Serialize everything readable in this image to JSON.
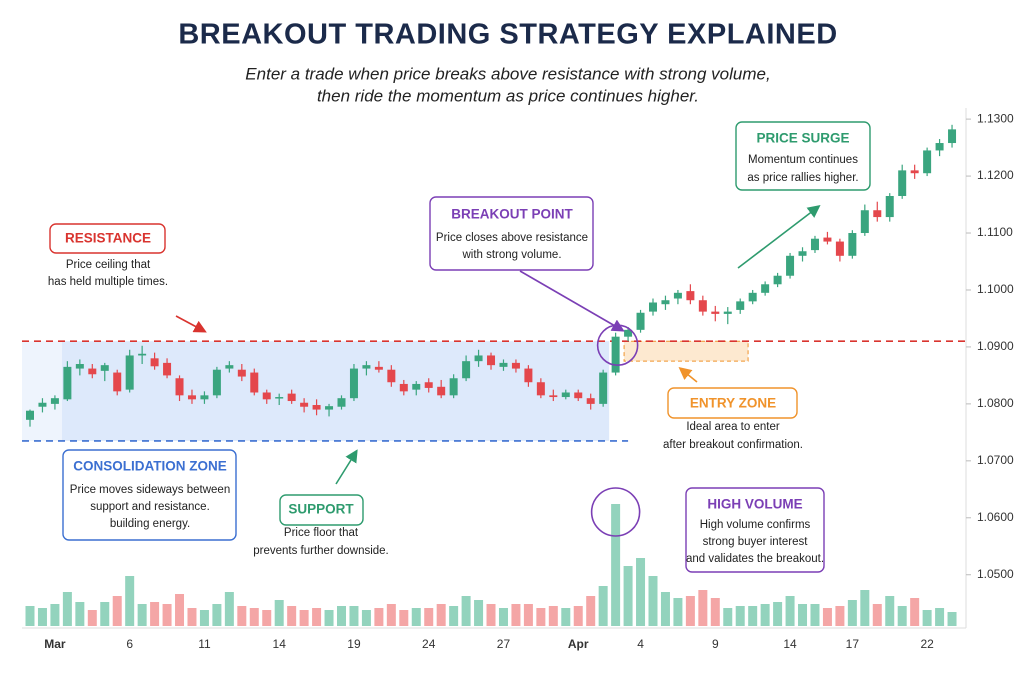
{
  "chart_data": {
    "type": "candlestick",
    "title": "BREAKOUT TRADING STRATEGY EXPLAINED",
    "subtitle": [
      "Enter a trade when price breaks above resistance with strong volume,",
      "then ride the momentum as price continues higher."
    ],
    "categories": [
      null,
      null,
      "Mar",
      null,
      null,
      null,
      null,
      null,
      "6",
      null,
      null,
      null,
      null,
      null,
      "11",
      null,
      null,
      null,
      null,
      null,
      "14",
      null,
      null,
      null,
      null,
      null,
      "19",
      null,
      null,
      null,
      null,
      null,
      "24",
      null,
      null,
      null,
      null,
      null,
      "27",
      null,
      null,
      null,
      null,
      null,
      "Apr",
      null,
      null,
      null,
      null,
      "4",
      null,
      null,
      null,
      null,
      null,
      "9",
      null,
      null,
      null,
      null,
      null,
      "14",
      null,
      null,
      null,
      null,
      "17",
      null,
      null,
      null,
      null,
      null,
      "22",
      null,
      null
    ],
    "open": [
      1.0772,
      1.0795,
      1.08,
      1.0808,
      1.0862,
      1.0862,
      1.0858,
      1.0855,
      1.0825,
      1.0885,
      1.088,
      1.0872,
      1.0845,
      1.0815,
      1.0808,
      1.0815,
      1.0862,
      1.086,
      1.0855,
      1.082,
      1.081,
      1.0818,
      1.0802,
      1.0798,
      1.079,
      1.0795,
      1.081,
      1.0862,
      1.0865,
      1.086,
      1.0835,
      1.0825,
      1.0838,
      1.083,
      1.0815,
      1.0845,
      1.0875,
      1.0885,
      1.0865,
      1.0872,
      1.0862,
      1.0838,
      1.0815,
      1.0812,
      1.082,
      1.081,
      1.08,
      1.0855,
      1.0918,
      1.093,
      1.0962,
      1.0975,
      1.0985,
      1.0998,
      1.0982,
      1.0962,
      1.0958,
      1.0965,
      1.098,
      1.0995,
      1.101,
      1.1025,
      1.106,
      1.107,
      1.1092,
      1.1085,
      1.106,
      1.11,
      1.114,
      1.1128,
      1.1165,
      1.121,
      1.1205,
      1.1245,
      1.1258
    ],
    "high": [
      1.079,
      1.081,
      1.0815,
      1.0875,
      1.0878,
      1.087,
      1.0872,
      1.086,
      1.0895,
      1.0902,
      1.089,
      1.088,
      1.085,
      1.0825,
      1.0822,
      1.0865,
      1.0875,
      1.087,
      1.0862,
      1.0825,
      1.0818,
      1.0825,
      1.081,
      1.0808,
      1.08,
      1.0815,
      1.087,
      1.0875,
      1.0875,
      1.0868,
      1.0842,
      1.084,
      1.0845,
      1.0842,
      1.0852,
      1.0885,
      1.0895,
      1.089,
      1.0878,
      1.0878,
      1.0868,
      1.0845,
      1.0825,
      1.0825,
      1.0825,
      1.0818,
      1.086,
      1.0925,
      1.0935,
      1.0965,
      1.0985,
      1.099,
      1.1,
      1.101,
      1.099,
      1.0972,
      1.097,
      1.0985,
      1.1,
      1.1015,
      1.103,
      1.1065,
      1.1075,
      1.1095,
      1.1102,
      1.109,
      1.1105,
      1.115,
      1.1155,
      1.117,
      1.122,
      1.122,
      1.125,
      1.1265,
      1.129
    ],
    "low": [
      1.076,
      1.0785,
      1.079,
      1.0805,
      1.085,
      1.0845,
      1.084,
      1.0815,
      1.082,
      1.087,
      1.086,
      1.0845,
      1.0805,
      1.08,
      1.08,
      1.081,
      1.0855,
      1.084,
      1.0815,
      1.08,
      1.0798,
      1.08,
      1.0785,
      1.078,
      1.0778,
      1.079,
      1.0805,
      1.085,
      1.0855,
      1.083,
      1.0815,
      1.0815,
      1.082,
      1.081,
      1.081,
      1.084,
      1.0865,
      1.086,
      1.0858,
      1.0855,
      1.083,
      1.081,
      1.0805,
      1.0808,
      1.0805,
      1.079,
      1.0795,
      1.085,
      1.091,
      1.0925,
      1.0955,
      1.0965,
      1.0975,
      1.0975,
      1.0955,
      1.0945,
      1.094,
      1.0958,
      1.0975,
      1.099,
      1.1005,
      1.102,
      1.105,
      1.1065,
      1.108,
      1.105,
      1.1055,
      1.1095,
      1.112,
      1.112,
      1.116,
      1.1195,
      1.12,
      1.1235,
      1.125
    ],
    "close": [
      1.0788,
      1.0802,
      1.081,
      1.0865,
      1.087,
      1.0852,
      1.0868,
      1.0822,
      1.0885,
      1.0888,
      1.0866,
      1.085,
      1.0815,
      1.0808,
      1.0815,
      1.086,
      1.0868,
      1.0848,
      1.082,
      1.0808,
      1.0812,
      1.0805,
      1.0795,
      1.079,
      1.0796,
      1.081,
      1.0862,
      1.0868,
      1.086,
      1.0838,
      1.0822,
      1.0835,
      1.0828,
      1.0815,
      1.0845,
      1.0875,
      1.0885,
      1.0868,
      1.0872,
      1.0862,
      1.0838,
      1.0815,
      1.0812,
      1.082,
      1.081,
      1.08,
      1.0855,
      1.0918,
      1.093,
      1.096,
      1.0978,
      1.0982,
      1.0995,
      1.0982,
      1.0962,
      1.0958,
      1.0962,
      1.098,
      1.0995,
      1.101,
      1.1025,
      1.106,
      1.1068,
      1.109,
      1.1085,
      1.106,
      1.11,
      1.114,
      1.1128,
      1.1165,
      1.121,
      1.1205,
      1.1245,
      1.1258,
      1.1282
    ],
    "volume": [
      20,
      18,
      22,
      34,
      24,
      16,
      24,
      30,
      50,
      22,
      24,
      22,
      32,
      18,
      16,
      22,
      34,
      20,
      18,
      16,
      26,
      20,
      16,
      18,
      16,
      20,
      20,
      16,
      18,
      22,
      16,
      18,
      18,
      22,
      20,
      30,
      26,
      22,
      18,
      22,
      22,
      18,
      20,
      18,
      20,
      30,
      40,
      122,
      60,
      68,
      50,
      34,
      28,
      30,
      36,
      28,
      18,
      20,
      20,
      22,
      24,
      30,
      22,
      22,
      18,
      20,
      26,
      36,
      22,
      30,
      20,
      28,
      16,
      18,
      14
    ],
    "up_color": "#3aa57f",
    "down_color": "#e4474c",
    "up_volume_color": "#93d3bd",
    "down_volume_color": "#f4a6a6",
    "ylim": [
      1.041,
      1.1316
    ],
    "yticks": [
      {
        "value": 1.05,
        "label": "1.0500"
      },
      {
        "value": 1.06,
        "label": "1.0600"
      },
      {
        "value": 1.07,
        "label": "1.0700"
      },
      {
        "value": 1.08,
        "label": "1.0800"
      },
      {
        "value": 1.09,
        "label": "1.0900"
      },
      {
        "value": 1.1,
        "label": "1.1000"
      },
      {
        "value": 1.11,
        "label": "1.1100"
      },
      {
        "value": 1.12,
        "label": "1.1200"
      },
      {
        "value": 1.13,
        "label": "1.1300"
      }
    ],
    "resistance": 1.091,
    "support": 1.0735,
    "entry_zone": [
      1.0875,
      1.091
    ],
    "annotations": [
      {
        "title": "RESISTANCE",
        "lines": [
          "Price ceiling that",
          "has held multiple times."
        ]
      },
      {
        "title": "BREAKOUT POINT",
        "lines": [
          "Price closes above resistance",
          "with strong volume."
        ]
      },
      {
        "title": "PRICE SURGE",
        "lines": [
          "Momentum continues",
          "as price rallies higher."
        ]
      },
      {
        "title": "ENTRY ZONE",
        "lines": [
          "Ideal area to enter",
          "after breakout confirmation."
        ]
      },
      {
        "title": "CONSOLIDATION ZONE",
        "lines": [
          "Price moves sideways between",
          "support and resistance.",
          "building energy."
        ]
      },
      {
        "title": "SUPPORT",
        "lines": [
          "Price floor that",
          "prevents further downside."
        ]
      },
      {
        "title": "HIGH VOLUME",
        "lines": [
          "High volume confirms",
          "strong buyer interest",
          "and validates the breakout."
        ]
      }
    ]
  }
}
